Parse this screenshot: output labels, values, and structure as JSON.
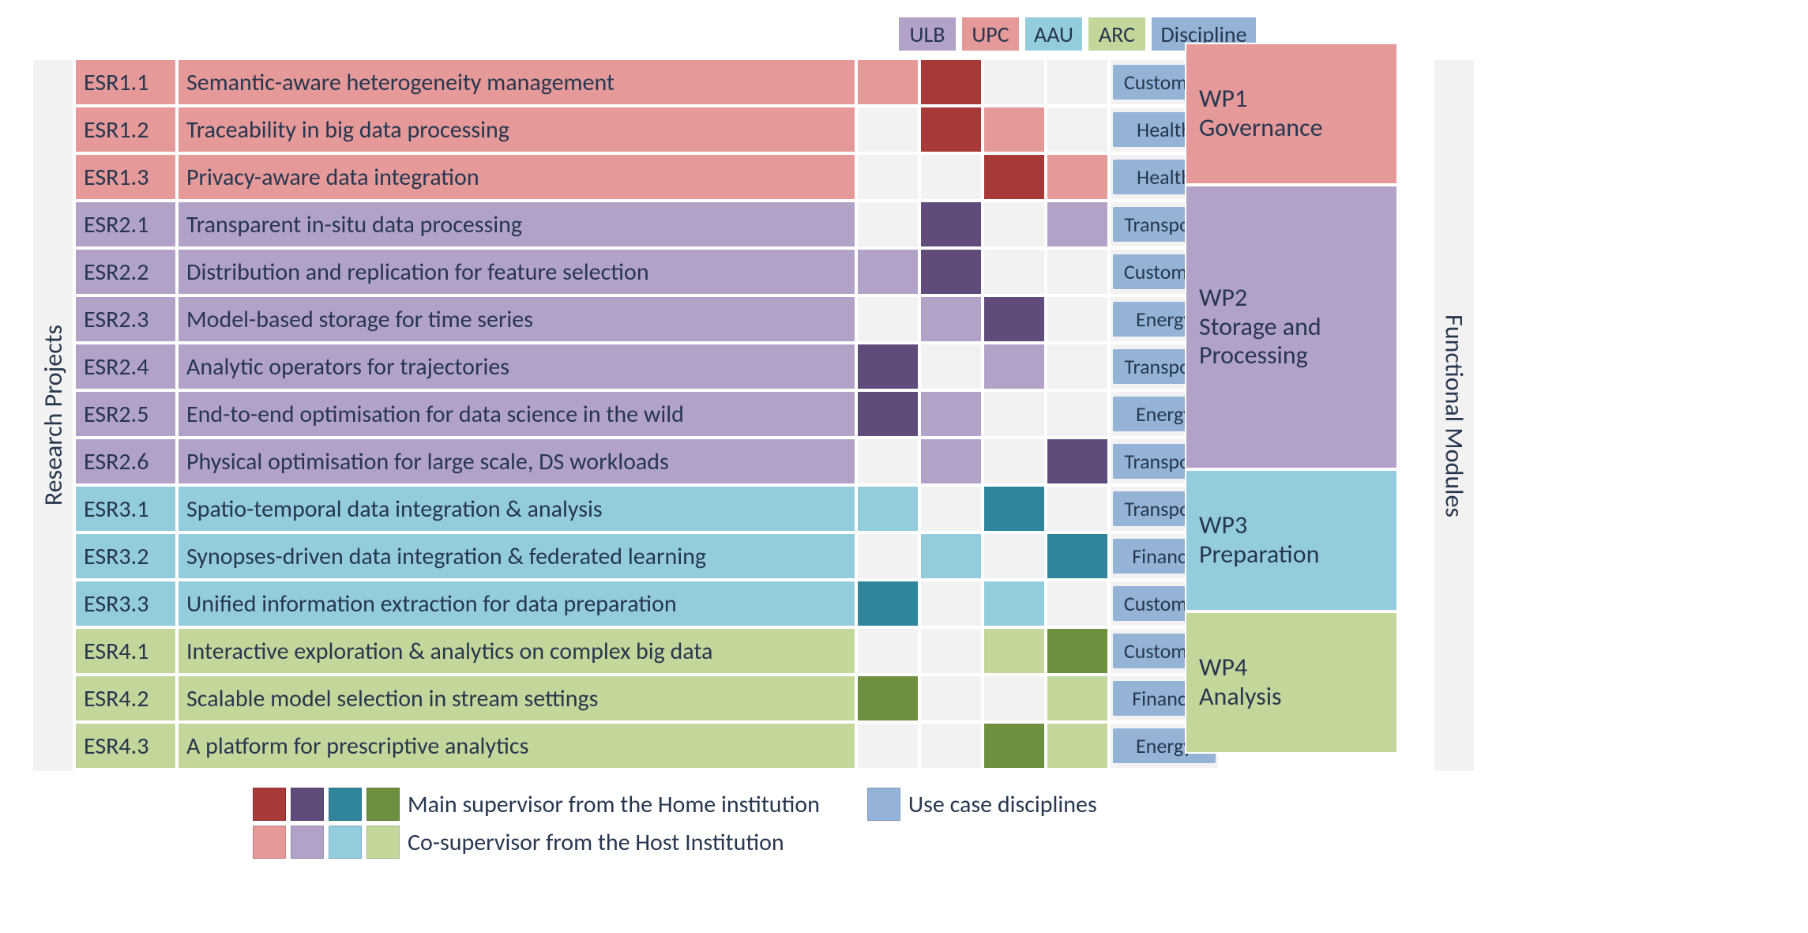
{
  "labels": {
    "left": "Research Projects",
    "right": "Functional Modules"
  },
  "colors": {
    "wp1_light": "#e59999",
    "wp1_dark": "#a73a38",
    "wp2_light": "#b3a2c8",
    "wp2_dark": "#604b7a",
    "wp3_light": "#93cddd",
    "wp3_dark": "#2f859b",
    "wp4_light": "#c4d79b",
    "wp4_dark": "#6e8f3d",
    "discipline": "#95b3d7",
    "neutral": "#f2f2f2",
    "text": "#26374f",
    "white": "#ffffff"
  },
  "columns": {
    "institutions": [
      {
        "key": "ULB",
        "label": "ULB",
        "header_color": "#b3a2c8"
      },
      {
        "key": "UPC",
        "label": "UPC",
        "header_color": "#e59999"
      },
      {
        "key": "AAU",
        "label": "AAU",
        "header_color": "#93cddd"
      },
      {
        "key": "ARC",
        "label": "ARC",
        "header_color": "#c4d79b"
      }
    ],
    "discipline_header": "Discipline"
  },
  "work_packages": [
    {
      "key": "wp1",
      "label": "WP1\nGovernance",
      "span": 3,
      "light": "#e59999",
      "dark": "#a73a38"
    },
    {
      "key": "wp2",
      "label": "WP2\nStorage and\nProcessing",
      "span": 6,
      "light": "#b3a2c8",
      "dark": "#604b7a"
    },
    {
      "key": "wp3",
      "label": "WP3\nPreparation",
      "span": 3,
      "light": "#93cddd",
      "dark": "#2f859b"
    },
    {
      "key": "wp4",
      "label": "WP4\nAnalysis",
      "span": 3,
      "light": "#c4d79b",
      "dark": "#6e8f3d"
    }
  ],
  "rows": [
    {
      "wp": "wp1",
      "id": "ESR1.1",
      "title": "Semantic-aware heterogeneity management",
      "inst": {
        "ULB": "co",
        "UPC": "main",
        "AAU": "",
        "ARC": ""
      },
      "discipline": "Customer"
    },
    {
      "wp": "wp1",
      "id": "ESR1.2",
      "title": "Traceability in big data processing",
      "inst": {
        "ULB": "",
        "UPC": "main",
        "AAU": "co",
        "ARC": ""
      },
      "discipline": "Health"
    },
    {
      "wp": "wp1",
      "id": "ESR1.3",
      "title": "Privacy-aware data integration",
      "inst": {
        "ULB": "",
        "UPC": "",
        "AAU": "main",
        "ARC": "co"
      },
      "discipline": "Health"
    },
    {
      "wp": "wp2",
      "id": "ESR2.1",
      "title": "Transparent in-situ data processing",
      "inst": {
        "ULB": "",
        "UPC": "main",
        "AAU": "",
        "ARC": "co"
      },
      "discipline": "Transport"
    },
    {
      "wp": "wp2",
      "id": "ESR2.2",
      "title": "Distribution and replication for feature selection",
      "inst": {
        "ULB": "co",
        "UPC": "main",
        "AAU": "",
        "ARC": ""
      },
      "discipline": "Customer"
    },
    {
      "wp": "wp2",
      "id": "ESR2.3",
      "title": "Model-based storage for time series",
      "inst": {
        "ULB": "",
        "UPC": "co",
        "AAU": "main",
        "ARC": ""
      },
      "discipline": "Energy"
    },
    {
      "wp": "wp2",
      "id": "ESR2.4",
      "title": "Analytic operators for trajectories",
      "inst": {
        "ULB": "main",
        "UPC": "",
        "AAU": "co",
        "ARC": ""
      },
      "discipline": "Transport"
    },
    {
      "wp": "wp2",
      "id": "ESR2.5",
      "title": "End-to-end optimisation for data science in the wild",
      "inst": {
        "ULB": "main",
        "UPC": "co",
        "AAU": "",
        "ARC": ""
      },
      "discipline": "Energy"
    },
    {
      "wp": "wp2",
      "id": "ESR2.6",
      "title": "Physical optimisation for large scale, DS workloads",
      "inst": {
        "ULB": "",
        "UPC": "co",
        "AAU": "",
        "ARC": "main"
      },
      "discipline": "Transport"
    },
    {
      "wp": "wp3",
      "id": "ESR3.1",
      "title": "Spatio-temporal data integration & analysis",
      "inst": {
        "ULB": "co",
        "UPC": "",
        "AAU": "main",
        "ARC": ""
      },
      "discipline": "Transport"
    },
    {
      "wp": "wp3",
      "id": "ESR3.2",
      "title": "Synopses-driven data integration & federated learning",
      "inst": {
        "ULB": "",
        "UPC": "co",
        "AAU": "",
        "ARC": "main"
      },
      "discipline": "Finance"
    },
    {
      "wp": "wp3",
      "id": "ESR3.3",
      "title": "Unified information extraction for data preparation",
      "inst": {
        "ULB": "main",
        "UPC": "",
        "AAU": "co",
        "ARC": ""
      },
      "discipline": "Customer"
    },
    {
      "wp": "wp4",
      "id": "ESR4.1",
      "title": "Interactive exploration & analytics on complex big data",
      "inst": {
        "ULB": "",
        "UPC": "",
        "AAU": "co",
        "ARC": "main"
      },
      "discipline": "Customer"
    },
    {
      "wp": "wp4",
      "id": "ESR4.2",
      "title": "Scalable model selection in stream settings",
      "inst": {
        "ULB": "main",
        "UPC": "",
        "AAU": "",
        "ARC": "co"
      },
      "discipline": "Finance"
    },
    {
      "wp": "wp4",
      "id": "ESR4.3",
      "title": "A platform for prescriptive analytics",
      "inst": {
        "ULB": "",
        "UPC": "",
        "AAU": "main",
        "ARC": "co"
      },
      "discipline": "Energy"
    }
  ],
  "legend": {
    "main": "Main supervisor from the Home institution",
    "co": "Co-supervisor from the Host Institution",
    "disc": "Use case disciplines"
  }
}
